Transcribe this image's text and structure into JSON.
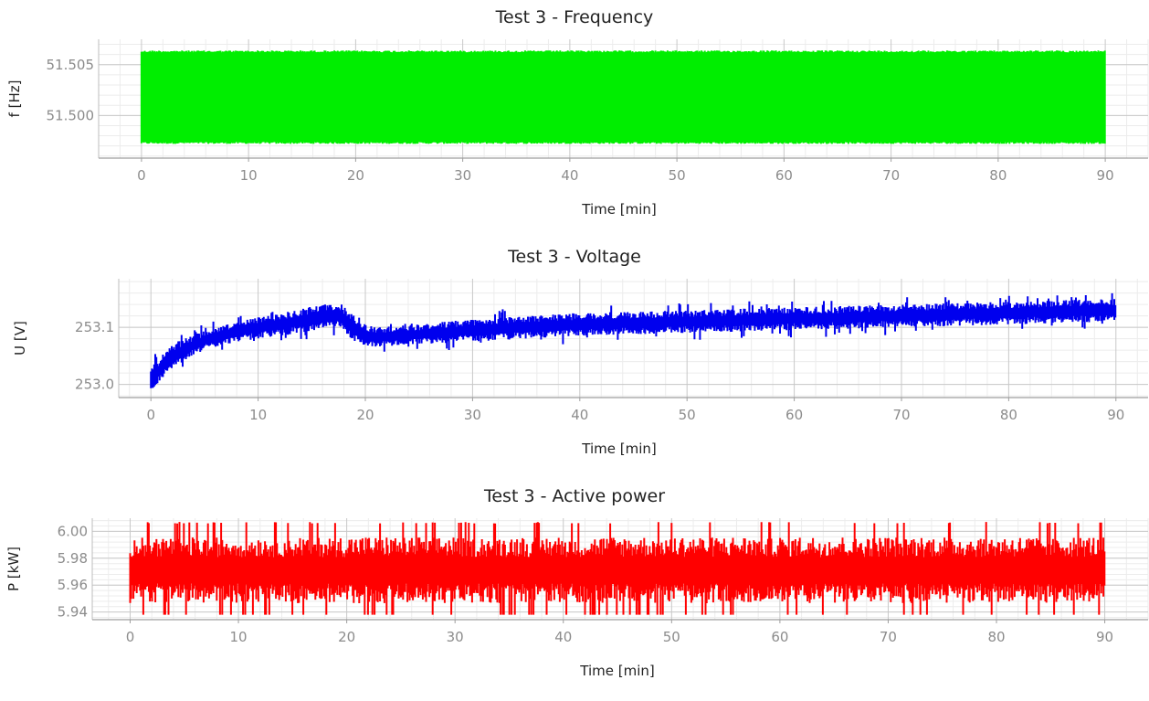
{
  "colors": {
    "frequency": "#00ee00",
    "voltage": "#0000ee",
    "active_power": "#ff0000",
    "major_grid": "#c8c8c8",
    "minor_grid": "#ececec",
    "tick_label": "#8c8c8c"
  },
  "chart_data": [
    {
      "type": "line",
      "title": "Test 3 - Frequency",
      "xlabel": "Time [min]",
      "ylabel": "f [Hz]",
      "xlim": [
        -4,
        94
      ],
      "ylim": [
        51.4958,
        51.5075
      ],
      "xticks": [
        0,
        10,
        20,
        30,
        40,
        50,
        60,
        70,
        80,
        90
      ],
      "yticks": [
        51.5,
        51.505
      ],
      "ytick_labels": [
        "51.500",
        "51.505"
      ],
      "grid": true,
      "legend": "none",
      "series": [
        {
          "x_range": [
            0,
            90
          ],
          "y_max": 51.5064,
          "y_min": 51.4972,
          "trend": "constant band"
        }
      ]
    },
    {
      "type": "line",
      "title": "Test 3 - Voltage",
      "xlabel": "Time [min]",
      "ylabel": "U [V]",
      "xlim": [
        -3,
        93
      ],
      "ylim": [
        252.977,
        253.185
      ],
      "xticks": [
        0,
        10,
        20,
        30,
        40,
        50,
        60,
        70,
        80,
        90
      ],
      "yticks": [
        253.0,
        253.1
      ],
      "ytick_labels": [
        "253.0",
        "253.1"
      ],
      "grid": true,
      "legend": "none",
      "series": [
        {
          "x": [
            0,
            1,
            2,
            3,
            5,
            8,
            12,
            16,
            17.5,
            19,
            20,
            21,
            25,
            30,
            40,
            50,
            60,
            70,
            80,
            90
          ],
          "y_max": [
            253.03,
            253.05,
            253.07,
            253.08,
            253.095,
            253.11,
            253.125,
            253.14,
            253.145,
            253.12,
            253.105,
            253.1,
            253.105,
            253.115,
            253.125,
            253.13,
            253.135,
            253.14,
            253.145,
            253.15
          ],
          "y_min": [
            252.98,
            253.01,
            253.025,
            253.04,
            253.06,
            253.075,
            253.085,
            253.095,
            253.1,
            253.075,
            253.065,
            253.065,
            253.07,
            253.075,
            253.085,
            253.09,
            253.095,
            253.1,
            253.105,
            253.11
          ]
        }
      ]
    },
    {
      "type": "line",
      "title": "Test 3 - Active power",
      "xlabel": "Time [min]",
      "ylabel": "P [kW]",
      "xlim": [
        -3.5,
        94
      ],
      "ylim": [
        5.9343,
        6.0098
      ],
      "xticks": [
        0,
        10,
        20,
        30,
        40,
        50,
        60,
        70,
        80,
        90
      ],
      "yticks": [
        5.94,
        5.96,
        5.98,
        6.0
      ],
      "ytick_labels": [
        "5.94",
        "5.96",
        "5.98",
        "6.00"
      ],
      "grid": true,
      "legend": "none",
      "series": [
        {
          "x_range": [
            0,
            90
          ],
          "y_max": 6.008,
          "y_min": 5.938,
          "y_center": 5.971,
          "trend": "noisy band"
        }
      ]
    }
  ]
}
